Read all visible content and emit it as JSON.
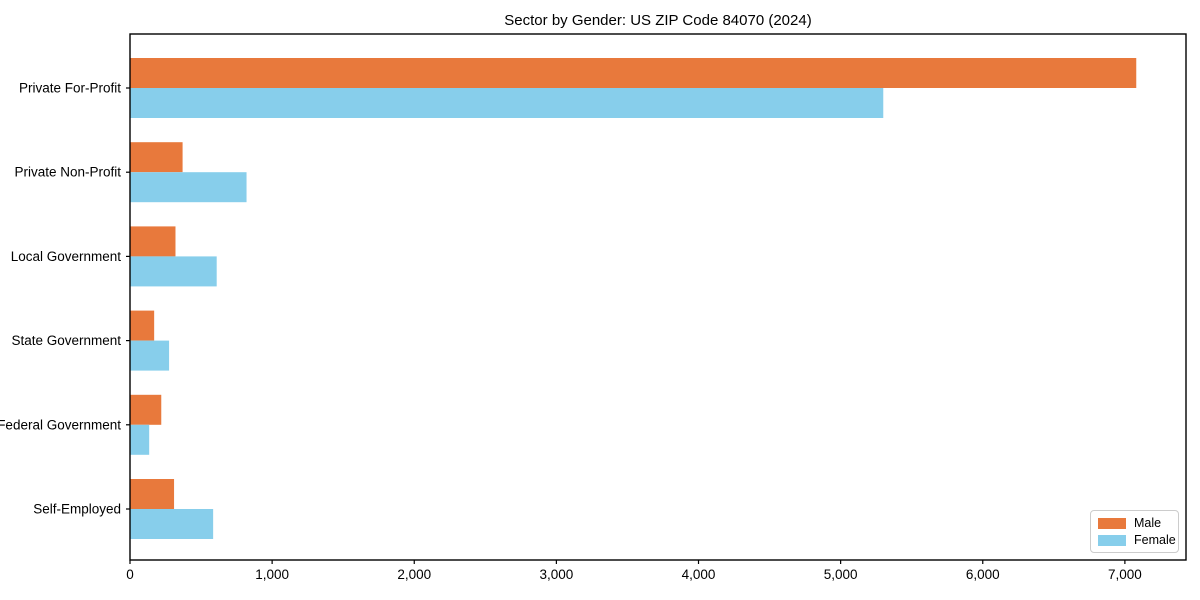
{
  "figure": {
    "title": "Sector by Gender: US ZIP Code 84070 (2024)"
  },
  "chart_data": {
    "type": "bar",
    "orientation": "horizontal",
    "title": "Sector by Gender: US ZIP Code 84070 (2024)",
    "categories": [
      "Private For-Profit",
      "Private Non-Profit",
      "Local Government",
      "State Government",
      "Federal Government",
      "Self-Employed"
    ],
    "series": [
      {
        "name": "Male",
        "color": "#e8793c",
        "values": [
          7080,
          370,
          320,
          170,
          220,
          310
        ]
      },
      {
        "name": "Female",
        "color": "#87ceeb",
        "values": [
          5300,
          820,
          610,
          275,
          135,
          585
        ]
      }
    ],
    "xlabel": "",
    "ylabel": "",
    "xlim": [
      0,
      7430
    ],
    "x_ticks": [
      0,
      1000,
      2000,
      3000,
      4000,
      5000,
      6000,
      7000
    ],
    "x_tick_labels": [
      "0",
      "1,000",
      "2,000",
      "3,000",
      "4,000",
      "5,000",
      "6,000",
      "7,000"
    ],
    "grid": false,
    "legend_position": "lower right"
  },
  "legend": {
    "items": [
      {
        "label": "Male",
        "color": "#e8793c"
      },
      {
        "label": "Female",
        "color": "#87ceeb"
      }
    ]
  },
  "colors": {
    "axis": "#000000",
    "legend_border": "#cccccc",
    "background": "#ffffff"
  }
}
